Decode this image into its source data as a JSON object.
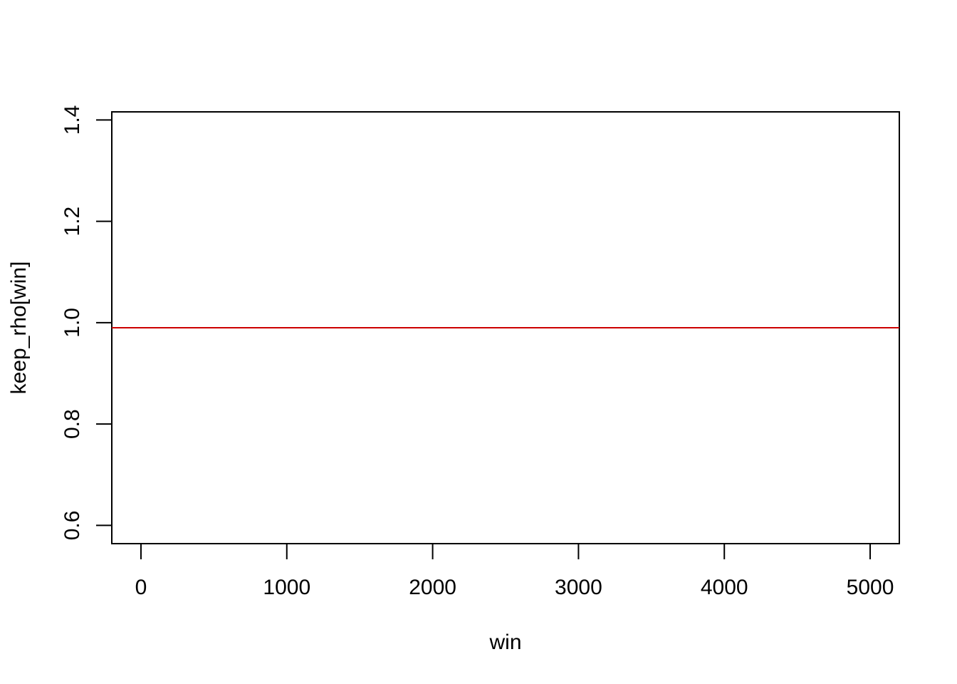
{
  "chart_data": {
    "type": "line",
    "title": "",
    "xlabel": "win",
    "ylabel": "keep_rho[win]",
    "xlim": [
      -200,
      5200
    ],
    "ylim": [
      0.564,
      1.416
    ],
    "x_ticks": [
      "0",
      "1000",
      "2000",
      "3000",
      "4000",
      "5000"
    ],
    "y_ticks": [
      "0.6",
      "0.8",
      "1.0",
      "1.2",
      "1.4"
    ],
    "grid": false,
    "legend": "none",
    "series": [
      {
        "x": [
          -200,
          5200
        ],
        "y": [
          0.99,
          0.99
        ],
        "color": "#cc0000"
      }
    ]
  }
}
